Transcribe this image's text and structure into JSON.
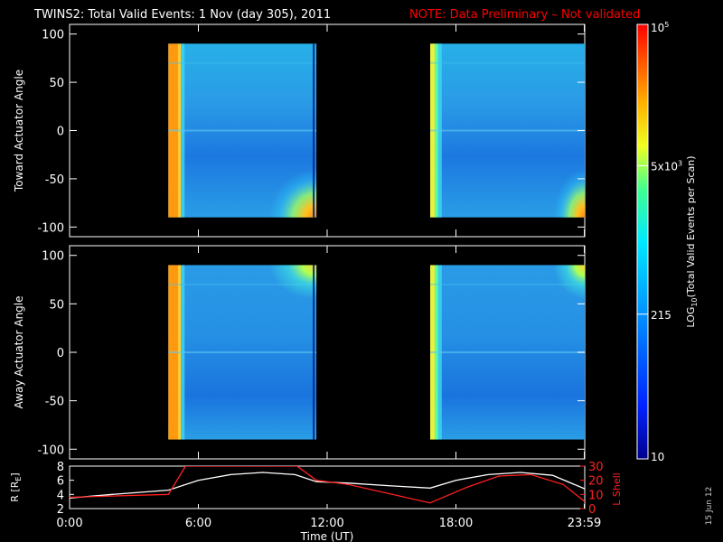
{
  "header": {
    "title": "TWINS2: Total Valid Events:  1 Nov (day 305), 2011",
    "note": "NOTE: Data Preliminary – Not validated"
  },
  "stamp": "15 Jun 12",
  "colors": {
    "title": "#ffffff",
    "note": "#ff0000",
    "l_shell": "#ff2020",
    "radius": "#ffffff",
    "axes": "#ffffff"
  },
  "chart_data": [
    {
      "type": "heatmap",
      "panel": "top",
      "ylabel": "Toward Actuator Angle",
      "ylim": [
        -110,
        110
      ],
      "yticks": [
        "100",
        "50",
        "0",
        "-50",
        "-100"
      ],
      "ytick_values": [
        100,
        50,
        0,
        -50,
        -100
      ],
      "xlim_hours": [
        0,
        24
      ],
      "coverage_hours": [
        [
          4.6,
          11.5
        ],
        [
          16.8,
          24
        ]
      ],
      "angle_range": [
        -90,
        90
      ]
    },
    {
      "type": "heatmap",
      "panel": "middle",
      "ylabel": "Away Actuator Angle",
      "ylim": [
        -110,
        110
      ],
      "yticks": [
        "100",
        "50",
        "0",
        "-50",
        "-100"
      ],
      "ytick_values": [
        100,
        50,
        0,
        -50,
        -100
      ],
      "xlim_hours": [
        0,
        24
      ],
      "coverage_hours": [
        [
          4.6,
          11.5
        ],
        [
          16.8,
          24
        ]
      ],
      "angle_range": [
        -90,
        90
      ]
    },
    {
      "type": "line",
      "panel": "bottom",
      "xlabel": "Time (UT)",
      "xticks": [
        "0:00",
        "6:00",
        "12:00",
        "18:00",
        "23:59"
      ],
      "xtick_values": [
        0,
        6,
        12,
        18,
        23.98
      ],
      "left_axis": {
        "label_main": "R [R",
        "label_sub": "E",
        "label_end": "]",
        "ylim": [
          2,
          8
        ],
        "ticks": [
          "8",
          "6",
          "4",
          "2"
        ],
        "tick_values": [
          8,
          6,
          4,
          2
        ]
      },
      "right_axis": {
        "label": "L Shell",
        "ylim": [
          0,
          30
        ],
        "ticks": [
          "30",
          "20",
          "10",
          "0"
        ],
        "tick_values": [
          30,
          20,
          10,
          0
        ]
      },
      "series": [
        {
          "name": "R",
          "axis": "left",
          "x": [
            0,
            2,
            4.6,
            6,
            7.5,
            9,
            10.5,
            11.5,
            13,
            15,
            16.8,
            18,
            19.5,
            21,
            22.5,
            24
          ],
          "y": [
            3.5,
            4.0,
            4.6,
            6.0,
            6.8,
            7.1,
            6.8,
            5.8,
            5.6,
            5.2,
            4.9,
            6.0,
            6.8,
            7.1,
            6.7,
            4.8
          ]
        },
        {
          "name": "L Shell",
          "axis": "right",
          "x": [
            0,
            4.6,
            5.4,
            5.6,
            10.6,
            11.5,
            13,
            16.8,
            18.5,
            20,
            21.5,
            23,
            24
          ],
          "y": [
            8,
            10,
            30,
            30,
            30,
            20,
            17,
            4,
            15,
            23,
            24,
            17,
            5
          ]
        }
      ]
    },
    {
      "type": "colorbar",
      "label_main": "LOG",
      "label_sub": "10",
      "label_rest": "(Total Valid Events per Scan)",
      "scale": "log",
      "range": [
        10,
        100000
      ],
      "tick_labels": [
        {
          "value": 100000,
          "base": "10",
          "exp": "5"
        },
        {
          "value": 5000,
          "base": "5x10",
          "exp": "3"
        },
        {
          "value": 215,
          "base": "215",
          "exp": ""
        },
        {
          "value": 10,
          "base": "10",
          "exp": ""
        }
      ]
    }
  ]
}
